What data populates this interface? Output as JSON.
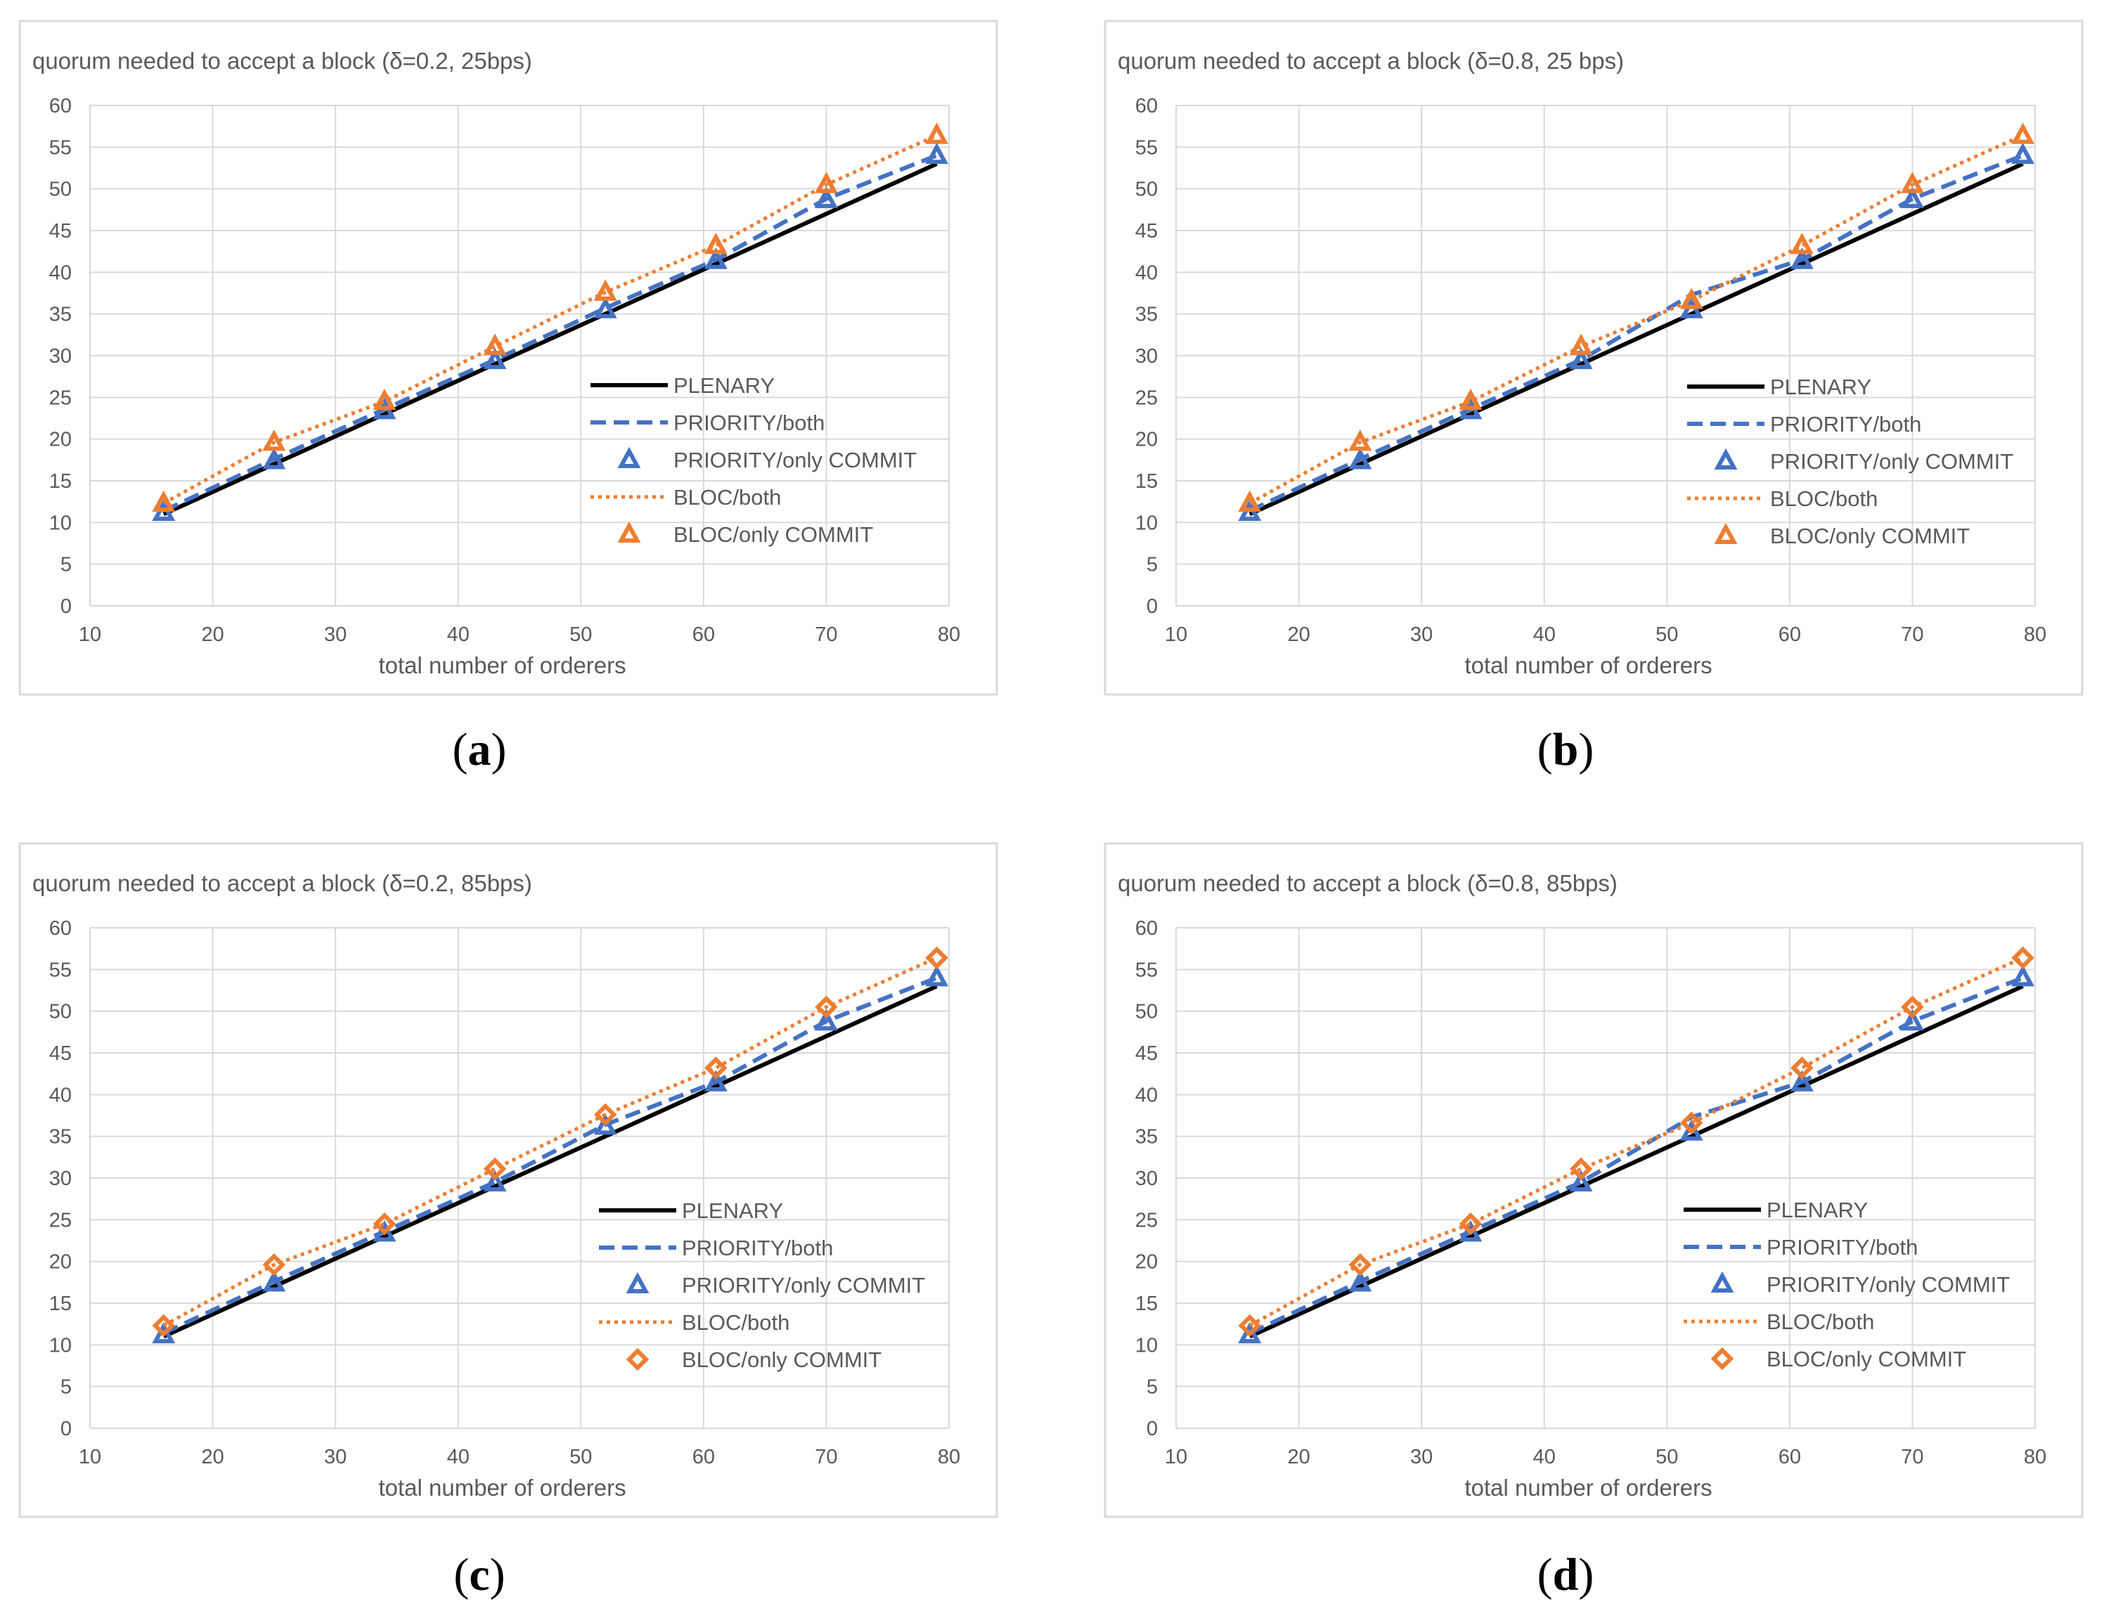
{
  "colors": {
    "plenary": "#000000",
    "priority": "#4472C4",
    "bloc": "#ED7D31",
    "grid": "#D9D9D9",
    "frame": "#D9D9D9",
    "text": "#595959"
  },
  "chart_data": [
    {
      "type": "line",
      "panel": "a",
      "caption": "a",
      "title": "quorum needed to accept a block (δ=0.2, 25bps)",
      "xlabel": "total number of orderers",
      "ylabel": "",
      "xlim": [
        10,
        80
      ],
      "ylim": [
        0,
        60
      ],
      "xticks": [
        10,
        20,
        30,
        40,
        50,
        60,
        70,
        80
      ],
      "yticks": [
        0,
        5,
        10,
        15,
        20,
        25,
        30,
        35,
        40,
        45,
        50,
        55,
        60
      ],
      "grid": true,
      "legend_position": "right-middle",
      "series": [
        {
          "name": "PLENARY",
          "style": "line",
          "x": [
            16,
            25,
            34,
            43,
            52,
            61,
            70,
            79
          ],
          "values": [
            11,
            17,
            23,
            29,
            35,
            41,
            47,
            53
          ]
        },
        {
          "name": "PRIORITY/both",
          "style": "line",
          "x": [
            16,
            25,
            34,
            43,
            52,
            61,
            70,
            79
          ],
          "values": [
            11.4,
            17.6,
            23.6,
            29.5,
            35.7,
            41.5,
            48.8,
            54
          ]
        },
        {
          "name": "PRIORITY/only COMMIT",
          "style": "marker",
          "marker": "triangle",
          "x": [
            16,
            25,
            34,
            43,
            52,
            61,
            70,
            79
          ],
          "values": [
            11.2,
            17.4,
            23.4,
            29.4,
            35.5,
            41.4,
            48.7,
            54
          ]
        },
        {
          "name": "BLOC/both",
          "style": "line",
          "x": [
            16,
            25,
            34,
            43,
            52,
            61,
            70,
            79
          ],
          "values": [
            12.3,
            19.6,
            24.5,
            31.1,
            37.6,
            43.2,
            50.5,
            56.4
          ]
        },
        {
          "name": "BLOC/only COMMIT",
          "style": "marker",
          "marker": "triangle",
          "x": [
            16,
            25,
            34,
            43,
            52,
            61,
            70,
            79
          ],
          "values": [
            12.3,
            19.6,
            24.5,
            31.1,
            37.6,
            43.2,
            50.5,
            56.4
          ]
        }
      ]
    },
    {
      "type": "line",
      "panel": "b",
      "caption": "b",
      "title": "quorum needed to accept a block (δ=0.8, 25 bps)",
      "xlabel": "total number of orderers",
      "ylabel": "",
      "xlim": [
        10,
        80
      ],
      "ylim": [
        0,
        60
      ],
      "xticks": [
        10,
        20,
        30,
        40,
        50,
        60,
        70,
        80
      ],
      "yticks": [
        0,
        5,
        10,
        15,
        20,
        25,
        30,
        35,
        40,
        45,
        50,
        55,
        60
      ],
      "grid": true,
      "legend_position": "right-middle",
      "series": [
        {
          "name": "PLENARY",
          "style": "line",
          "x": [
            16,
            25,
            34,
            43,
            52,
            61,
            70,
            79
          ],
          "values": [
            11,
            17,
            23,
            29,
            35,
            41,
            47,
            53
          ]
        },
        {
          "name": "PRIORITY/both",
          "style": "line",
          "x": [
            16,
            25,
            34,
            43,
            52,
            61,
            70,
            79
          ],
          "values": [
            11.4,
            17.6,
            23.6,
            29.5,
            37.3,
            41.5,
            48.8,
            54
          ]
        },
        {
          "name": "PRIORITY/only COMMIT",
          "style": "marker",
          "marker": "triangle",
          "x": [
            16,
            25,
            34,
            43,
            52,
            61,
            70,
            79
          ],
          "values": [
            11.2,
            17.4,
            23.4,
            29.4,
            35.5,
            41.4,
            48.7,
            54
          ]
        },
        {
          "name": "BLOC/both",
          "style": "line",
          "x": [
            16,
            25,
            34,
            43,
            52,
            61,
            70,
            79
          ],
          "values": [
            12.3,
            19.6,
            24.5,
            31.1,
            36.6,
            43.2,
            50.5,
            56.4
          ]
        },
        {
          "name": "BLOC/only COMMIT",
          "style": "marker",
          "marker": "triangle",
          "x": [
            16,
            25,
            34,
            43,
            52,
            61,
            70,
            79
          ],
          "values": [
            12.3,
            19.6,
            24.5,
            31.1,
            36.6,
            43.2,
            50.5,
            56.4
          ]
        }
      ]
    },
    {
      "type": "line",
      "panel": "c",
      "caption": "c",
      "title": "quorum needed to accept a block (δ=0.2, 85bps)",
      "xlabel": "total number of orderers",
      "ylabel": "",
      "xlim": [
        10,
        80
      ],
      "ylim": [
        0,
        60
      ],
      "xticks": [
        10,
        20,
        30,
        40,
        50,
        60,
        70,
        80
      ],
      "yticks": [
        0,
        5,
        10,
        15,
        20,
        25,
        30,
        35,
        40,
        45,
        50,
        55,
        60
      ],
      "grid": true,
      "legend_position": "right-middle",
      "series": [
        {
          "name": "PLENARY",
          "style": "line",
          "x": [
            16,
            25,
            34,
            43,
            52,
            61,
            70,
            79
          ],
          "values": [
            11,
            17,
            23,
            29,
            35,
            41,
            47,
            53
          ]
        },
        {
          "name": "PRIORITY/both",
          "style": "line",
          "x": [
            16,
            25,
            34,
            43,
            52,
            61,
            70,
            79
          ],
          "values": [
            11.4,
            17.6,
            23.6,
            29.5,
            36.4,
            41.5,
            48.8,
            54
          ]
        },
        {
          "name": "PRIORITY/only COMMIT",
          "style": "marker",
          "marker": "triangle",
          "x": [
            16,
            25,
            34,
            43,
            52,
            61,
            70,
            79
          ],
          "values": [
            11.2,
            17.4,
            23.4,
            29.4,
            36.2,
            41.4,
            48.7,
            54
          ]
        },
        {
          "name": "BLOC/both",
          "style": "line",
          "x": [
            16,
            25,
            34,
            43,
            52,
            61,
            70,
            79
          ],
          "values": [
            12.3,
            19.6,
            24.5,
            31.1,
            37.6,
            43.2,
            50.5,
            56.4
          ]
        },
        {
          "name": "BLOC/only COMMIT",
          "style": "marker",
          "marker": "diamond",
          "x": [
            16,
            25,
            34,
            43,
            52,
            61,
            70,
            79
          ],
          "values": [
            12.3,
            19.6,
            24.5,
            31.1,
            37.6,
            43.2,
            50.5,
            56.4
          ]
        }
      ]
    },
    {
      "type": "line",
      "panel": "d",
      "caption": "d",
      "title": "quorum needed to accept a block (δ=0.8, 85bps)",
      "xlabel": "total number of orderers",
      "ylabel": "",
      "xlim": [
        10,
        80
      ],
      "ylim": [
        0,
        60
      ],
      "xticks": [
        10,
        20,
        30,
        40,
        50,
        60,
        70,
        80
      ],
      "yticks": [
        0,
        5,
        10,
        15,
        20,
        25,
        30,
        35,
        40,
        45,
        50,
        55,
        60
      ],
      "grid": true,
      "legend_position": "right-middle",
      "series": [
        {
          "name": "PLENARY",
          "style": "line",
          "x": [
            16,
            25,
            34,
            43,
            52,
            61,
            70,
            79
          ],
          "values": [
            11,
            17,
            23,
            29,
            35,
            41,
            47,
            53
          ]
        },
        {
          "name": "PRIORITY/both",
          "style": "line",
          "x": [
            16,
            25,
            34,
            43,
            52,
            61,
            70,
            79
          ],
          "values": [
            11.4,
            17.6,
            23.6,
            29.5,
            37.3,
            41.5,
            48.8,
            54
          ]
        },
        {
          "name": "PRIORITY/only COMMIT",
          "style": "marker",
          "marker": "triangle",
          "x": [
            16,
            25,
            34,
            43,
            52,
            61,
            70,
            79
          ],
          "values": [
            11.2,
            17.4,
            23.4,
            29.4,
            35.5,
            41.4,
            48.7,
            54
          ]
        },
        {
          "name": "BLOC/both",
          "style": "line",
          "x": [
            16,
            25,
            34,
            43,
            52,
            61,
            70,
            79
          ],
          "values": [
            12.3,
            19.6,
            24.5,
            31.1,
            36.6,
            43.2,
            50.5,
            56.4
          ]
        },
        {
          "name": "BLOC/only COMMIT",
          "style": "marker",
          "marker": "diamond",
          "x": [
            16,
            25,
            34,
            43,
            52,
            61,
            70,
            79
          ],
          "values": [
            12.3,
            19.6,
            24.5,
            31.1,
            36.6,
            43.2,
            50.5,
            56.4
          ]
        }
      ]
    }
  ]
}
